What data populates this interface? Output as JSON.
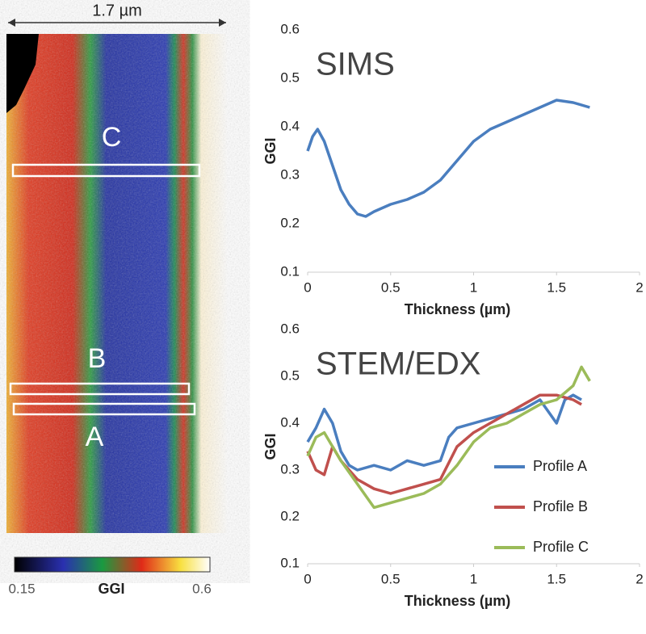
{
  "map": {
    "scale_label": "1.7 µm",
    "region_labels": [
      "C",
      "B",
      "A"
    ],
    "colorbar": {
      "label": "GGI",
      "min": 0.15,
      "max": 0.6
    }
  },
  "chart_data": [
    {
      "type": "line",
      "annotation": "SIMS",
      "x_label": "Thickness (µm)",
      "y_label": "GGI",
      "xlim": [
        0,
        2
      ],
      "xticks": [
        0,
        0.5,
        1,
        1.5,
        2
      ],
      "ylim": [
        0.1,
        0.6
      ],
      "yticks": [
        0.1,
        0.2,
        0.3,
        0.4,
        0.5,
        0.6
      ],
      "series": [
        {
          "color": "#4a7ebf",
          "x": [
            0,
            0.03,
            0.06,
            0.1,
            0.15,
            0.2,
            0.25,
            0.3,
            0.35,
            0.4,
            0.5,
            0.6,
            0.7,
            0.8,
            0.9,
            1.0,
            1.1,
            1.2,
            1.3,
            1.4,
            1.5,
            1.6,
            1.7
          ],
          "values": [
            0.35,
            0.38,
            0.395,
            0.37,
            0.32,
            0.27,
            0.24,
            0.22,
            0.215,
            0.225,
            0.24,
            0.25,
            0.265,
            0.29,
            0.33,
            0.37,
            0.395,
            0.41,
            0.425,
            0.44,
            0.455,
            0.45,
            0.44
          ]
        }
      ]
    },
    {
      "type": "line",
      "annotation": "STEM/EDX",
      "x_label": "Thickness (µm)",
      "y_label": "GGI",
      "xlim": [
        0,
        2
      ],
      "xticks": [
        0,
        0.5,
        1,
        1.5,
        2
      ],
      "ylim": [
        0.1,
        0.6
      ],
      "yticks": [
        0.1,
        0.2,
        0.3,
        0.4,
        0.5,
        0.6
      ],
      "legend": "lower right",
      "series": [
        {
          "name": "Profile A",
          "color": "#4a7ebf",
          "x": [
            0,
            0.05,
            0.1,
            0.15,
            0.2,
            0.25,
            0.3,
            0.4,
            0.5,
            0.6,
            0.7,
            0.8,
            0.85,
            0.9,
            1.0,
            1.1,
            1.2,
            1.3,
            1.4,
            1.5,
            1.55,
            1.6,
            1.65
          ],
          "values": [
            0.36,
            0.39,
            0.43,
            0.4,
            0.34,
            0.31,
            0.3,
            0.31,
            0.3,
            0.32,
            0.31,
            0.32,
            0.37,
            0.39,
            0.4,
            0.41,
            0.42,
            0.43,
            0.45,
            0.4,
            0.45,
            0.46,
            0.45
          ]
        },
        {
          "name": "Profile B",
          "color": "#c0504d",
          "x": [
            0,
            0.05,
            0.1,
            0.15,
            0.2,
            0.3,
            0.4,
            0.5,
            0.6,
            0.7,
            0.8,
            0.9,
            1.0,
            1.1,
            1.2,
            1.3,
            1.4,
            1.5,
            1.6,
            1.65
          ],
          "values": [
            0.34,
            0.3,
            0.29,
            0.35,
            0.32,
            0.28,
            0.26,
            0.25,
            0.26,
            0.27,
            0.28,
            0.35,
            0.38,
            0.4,
            0.42,
            0.44,
            0.46,
            0.46,
            0.45,
            0.44
          ]
        },
        {
          "name": "Profile C",
          "color": "#9bbb59",
          "x": [
            0,
            0.05,
            0.1,
            0.15,
            0.2,
            0.3,
            0.4,
            0.5,
            0.6,
            0.7,
            0.8,
            0.9,
            1.0,
            1.1,
            1.2,
            1.3,
            1.4,
            1.5,
            1.6,
            1.65,
            1.7
          ],
          "values": [
            0.33,
            0.37,
            0.38,
            0.35,
            0.32,
            0.27,
            0.22,
            0.23,
            0.24,
            0.25,
            0.27,
            0.31,
            0.36,
            0.39,
            0.4,
            0.42,
            0.44,
            0.45,
            0.48,
            0.52,
            0.49
          ]
        }
      ]
    }
  ]
}
